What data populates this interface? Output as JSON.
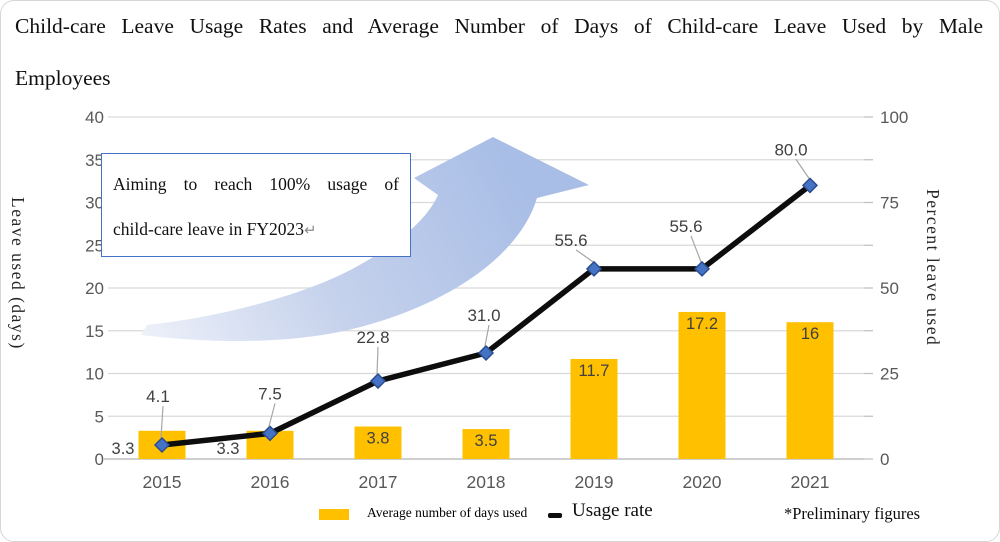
{
  "figure": {
    "title_line1": "Child-care Leave Usage Rates and Average Number of Days of Child-care Leave Used by Male",
    "title_line2": "Employees"
  },
  "annotation": {
    "line1": "Aiming to reach 100% usage of",
    "line2": "child-care leave in FY2023",
    "return_mark": "↵"
  },
  "legend": {
    "bars_label": "Average number of days used",
    "line_label": "Usage rate",
    "note": "*Preliminary figures"
  },
  "chart_data": {
    "type": "bar+line combo",
    "categories": [
      "2015",
      "2016",
      "2017",
      "2018",
      "2019",
      "2020",
      "2021"
    ],
    "series": [
      {
        "name": "Average number of days used",
        "type": "bar",
        "axis": "left",
        "color": "#FFC000",
        "values": [
          3.3,
          3.3,
          3.8,
          3.5,
          11.7,
          17.2,
          16
        ],
        "labels": [
          "3.3",
          "3.3",
          "3.8",
          "3.5",
          "11.7",
          "17.2",
          "16"
        ]
      },
      {
        "name": "Usage rate",
        "type": "line",
        "axis": "right",
        "color": "#0d0d0d",
        "marker": "diamond",
        "values": [
          4.1,
          7.5,
          22.8,
          31.0,
          55.6,
          55.6,
          80.0
        ],
        "labels": [
          "4.1",
          "7.5",
          "22.8",
          "31.0",
          "55.6",
          "55.6",
          "80.0"
        ]
      }
    ],
    "left_axis": {
      "title": "Leave used (days)",
      "min": 0,
      "max": 40,
      "step": 5,
      "tick_labels": [
        "0",
        "5",
        "10",
        "15",
        "20",
        "25",
        "30",
        "35",
        "40"
      ]
    },
    "right_axis": {
      "title": "Percent leave used",
      "min": 0,
      "max": 100,
      "tick_labels": [
        "0",
        "25",
        "50",
        "75",
        "100"
      ],
      "tick_label_positions": [
        0,
        25,
        50,
        75,
        100
      ],
      "minor_tick_every": 12.5
    },
    "grid": true,
    "legend_position": "bottom",
    "colors": {
      "bar": "#FFC000",
      "line": "#0d0d0d",
      "marker_fill": "#4472C4",
      "marker_stroke": "#2a4d8f",
      "gridline": "#d9d9d9",
      "axis_line": "#bfbfbf",
      "tick_label": "#595959",
      "data_label": "#404040",
      "leader_line": "#a6a6a6",
      "annotation_border": "#4472C4",
      "arrow_light": "#e8edf8",
      "arrow_dark": "#a9bee6"
    }
  }
}
